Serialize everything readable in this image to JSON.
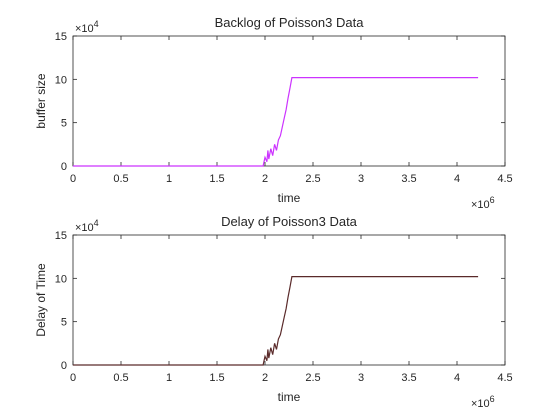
{
  "chart_data": [
    {
      "type": "line",
      "title": "Backlog of Poisson3 Data",
      "xlabel": "time",
      "ylabel": "buffer size",
      "xlim": [
        0,
        4500000
      ],
      "ylim": [
        0,
        150000
      ],
      "x_ticks": [
        0,
        0.5,
        1,
        1.5,
        2,
        2.5,
        3,
        3.5,
        4,
        4.5
      ],
      "y_ticks": [
        0,
        5,
        10,
        15
      ],
      "x_multiplier_base": "×10",
      "x_multiplier_exp": "6",
      "y_multiplier_base": "×10",
      "y_multiplier_exp": "4",
      "grid": false,
      "line_color": "#cc33ff",
      "series": [
        {
          "x": [
            0,
            1980000,
            2000000,
            2020000,
            2030000,
            2040000,
            2060000,
            2080000,
            2100000,
            2120000,
            2140000,
            2160000,
            2180000,
            2200000,
            2220000,
            2240000,
            2260000,
            2280000,
            2300000,
            3000000,
            4220000
          ],
          "y": [
            0,
            0,
            10000,
            5000,
            18000,
            8000,
            20000,
            12000,
            25000,
            18000,
            30000,
            35000,
            45000,
            55000,
            65000,
            78000,
            90000,
            102000,
            102000,
            102000,
            102000
          ]
        }
      ]
    },
    {
      "type": "line",
      "title": "Delay of Poisson3 Data",
      "xlabel": "time",
      "ylabel": "Delay of Time",
      "xlim": [
        0,
        4500000
      ],
      "ylim": [
        0,
        150000
      ],
      "x_ticks": [
        0,
        0.5,
        1,
        1.5,
        2,
        2.5,
        3,
        3.5,
        4,
        4.5
      ],
      "y_ticks": [
        0,
        5,
        10,
        15
      ],
      "x_multiplier_base": "×10",
      "x_multiplier_exp": "6",
      "y_multiplier_base": "×10",
      "y_multiplier_exp": "4",
      "grid": false,
      "line_color": "#5a2a2a",
      "series": [
        {
          "x": [
            0,
            1980000,
            2000000,
            2020000,
            2030000,
            2040000,
            2060000,
            2080000,
            2100000,
            2120000,
            2140000,
            2160000,
            2180000,
            2200000,
            2220000,
            2240000,
            2260000,
            2280000,
            2300000,
            3000000,
            4220000
          ],
          "y": [
            0,
            0,
            10000,
            5000,
            18000,
            8000,
            20000,
            12000,
            25000,
            18000,
            30000,
            35000,
            45000,
            55000,
            65000,
            78000,
            90000,
            102000,
            102000,
            102000,
            102000
          ]
        }
      ]
    }
  ]
}
